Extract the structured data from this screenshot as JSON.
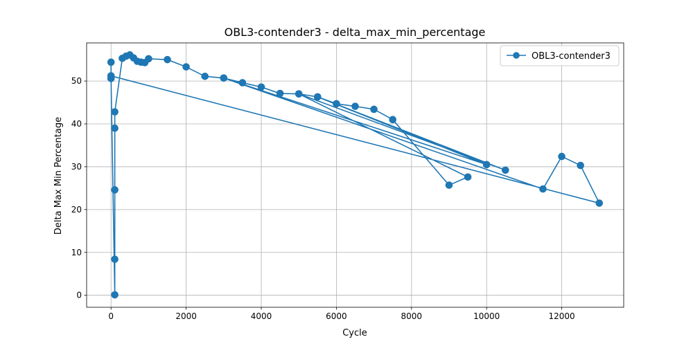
{
  "chart_data": {
    "type": "line",
    "title": "OBL3-contender3 - delta_max_min_percentage",
    "xlabel": "Cycle",
    "ylabel": "Delta Max Min Percentage",
    "xlim": [
      -650,
      13650
    ],
    "ylim": [
      -2.8,
      58.9
    ],
    "xticks": [
      0,
      2000,
      4000,
      6000,
      8000,
      10000,
      12000
    ],
    "yticks": [
      0,
      10,
      20,
      30,
      40,
      50
    ],
    "grid": true,
    "legend_position": "top-right",
    "colors": {
      "series": "#1f77b4",
      "grid": "#b0b0b0"
    },
    "series": [
      {
        "name": "OBL3-contender3",
        "marker": "circle",
        "points": [
          [
            0,
            54.4
          ],
          [
            0,
            51.2
          ],
          [
            0,
            50.6
          ],
          [
            100,
            0.1
          ],
          [
            100,
            8.4
          ],
          [
            100,
            24.6
          ],
          [
            100,
            39.0
          ],
          [
            100,
            42.8
          ],
          [
            300,
            55.3
          ],
          [
            400,
            55.8
          ],
          [
            500,
            56.1
          ],
          [
            600,
            55.4
          ],
          [
            700,
            54.6
          ],
          [
            800,
            54.4
          ],
          [
            900,
            54.3
          ],
          [
            1000,
            55.2
          ],
          [
            1500,
            55.0
          ],
          [
            2000,
            53.3
          ],
          [
            2500,
            51.1
          ],
          [
            3000,
            50.7
          ],
          [
            3500,
            49.6
          ],
          [
            4000,
            48.6
          ],
          [
            4500,
            47.1
          ],
          [
            5000,
            47.0
          ],
          [
            5500,
            46.3
          ],
          [
            6000,
            44.7
          ],
          [
            6500,
            44.1
          ],
          [
            7000,
            43.4
          ],
          [
            7500,
            41.0
          ],
          [
            9000,
            25.7
          ],
          [
            9500,
            27.6
          ],
          [
            5000,
            47.0
          ],
          [
            10500,
            29.2
          ],
          [
            5500,
            46.3
          ],
          [
            10000,
            30.5
          ],
          [
            3000,
            50.7
          ],
          [
            11500,
            24.8
          ],
          [
            12000,
            32.4
          ],
          [
            12500,
            30.3
          ],
          [
            13000,
            21.5
          ],
          [
            0,
            51.2
          ]
        ]
      }
    ]
  }
}
